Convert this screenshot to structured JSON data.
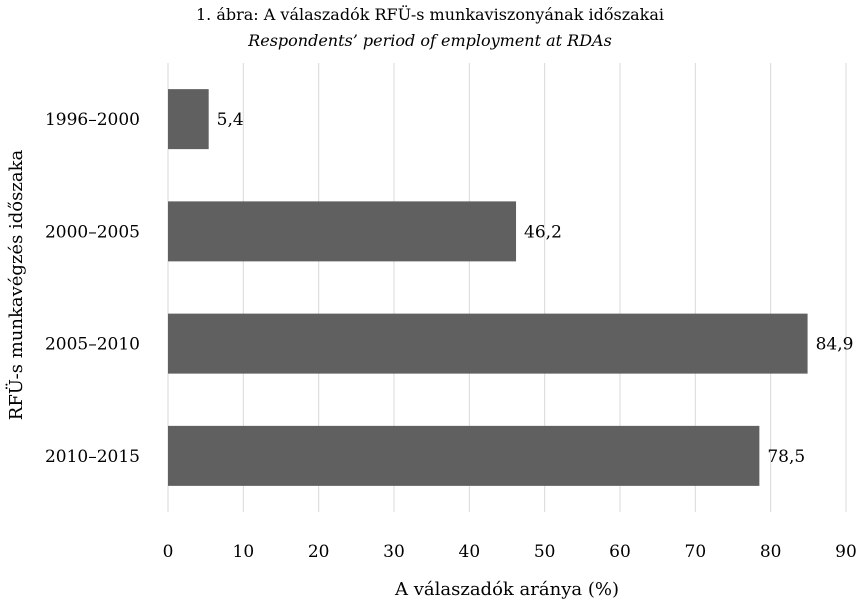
{
  "chart_data": {
    "type": "bar",
    "orientation": "horizontal",
    "title": "1. ábra: A válaszadók RFÜ-s munkaviszonyának időszakai",
    "subtitle": "Respondents’ period of employment at RDAs",
    "xlabel": "A válaszadók aránya (%)",
    "ylabel": "RFÜ-s munkavégzés időszaka",
    "categories": [
      "1996–2000",
      "2000–2005",
      "2005–2010",
      "2010–2015"
    ],
    "values": [
      5.4,
      46.2,
      84.9,
      78.5
    ],
    "value_labels": [
      "5,4",
      "46,2",
      "84,9",
      "78,5"
    ],
    "xlim": [
      0,
      90
    ],
    "xticks": [
      0,
      10,
      20,
      30,
      40,
      50,
      60,
      70,
      80,
      90
    ],
    "grid": "vertical",
    "legend": "none",
    "bar_color": "#606060",
    "grid_color": "#d9d9d9"
  }
}
